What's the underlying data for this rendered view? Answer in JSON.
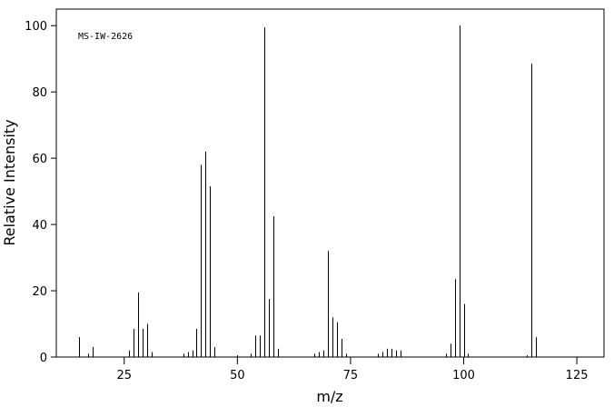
{
  "chart_data": {
    "type": "bar",
    "annotation": "MS-IW-2626",
    "x_label": "m/z",
    "y_label": "Relative Intensity",
    "x": [
      15,
      17,
      18,
      26,
      27,
      28,
      29,
      30,
      31,
      38,
      39,
      40,
      41,
      42,
      43,
      44,
      45,
      50,
      53,
      54,
      55,
      56,
      57,
      58,
      59,
      67,
      68,
      69,
      70,
      71,
      72,
      73,
      74,
      81,
      82,
      83,
      84,
      85,
      86,
      96,
      97,
      98,
      99,
      100,
      101,
      114,
      115,
      116
    ],
    "values": [
      6,
      1,
      3,
      2,
      8.5,
      19.5,
      8.5,
      10,
      1.5,
      1,
      1.5,
      2,
      8.5,
      58,
      62,
      51.5,
      3,
      0.5,
      1,
      6.5,
      6.5,
      99.5,
      17.5,
      42.5,
      2.5,
      1,
      1.5,
      2,
      32,
      12,
      10.5,
      5.5,
      1,
      1,
      1.5,
      2.5,
      2.5,
      2,
      2,
      1,
      4,
      23.5,
      100,
      16,
      1,
      0.5,
      88.5,
      6
    ],
    "color": "#000000",
    "xlim": [
      10,
      131
    ],
    "ylim": [
      0,
      105
    ],
    "xticks": [
      25,
      50,
      75,
      100,
      125
    ],
    "yticks": [
      0,
      20,
      40,
      60,
      80,
      100
    ]
  }
}
